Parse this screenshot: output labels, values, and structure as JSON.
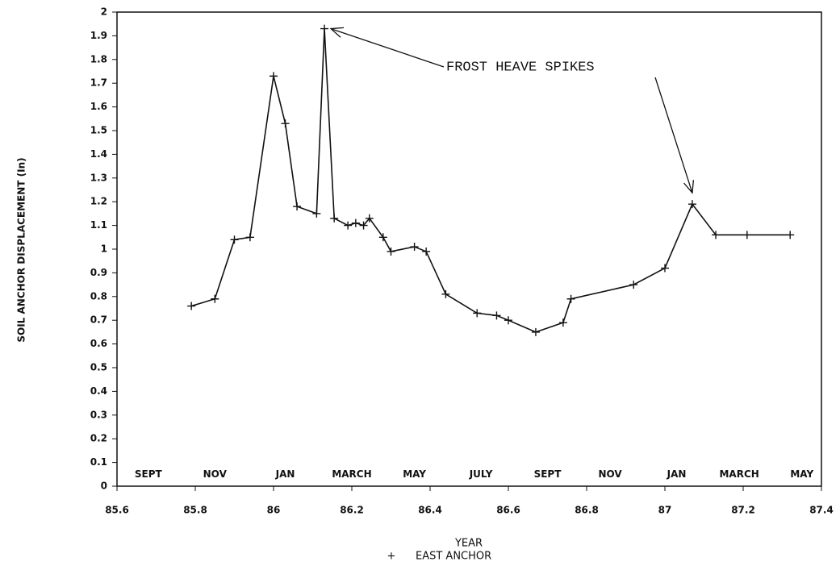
{
  "chart_data": {
    "type": "line",
    "x_label": "YEAR",
    "y_label": "SOIL ANCHOR DISPLACEMENT (In)",
    "annotation": "FROST HEAVE SPIKES",
    "xlim": [
      85.6,
      87.4
    ],
    "xticks": [
      85.6,
      85.8,
      86,
      86.2,
      86.4,
      86.6,
      86.8,
      87,
      87.2,
      87.4
    ],
    "ylim": [
      0,
      2
    ],
    "yticks": [
      0,
      0.1,
      0.2,
      0.3,
      0.4,
      0.5,
      0.6,
      0.7,
      0.8,
      0.9,
      1,
      1.1,
      1.2,
      1.3,
      1.4,
      1.5,
      1.6,
      1.7,
      1.8,
      1.9,
      2
    ],
    "month_labels": [
      {
        "text": "SEPT",
        "x": 85.68
      },
      {
        "text": "NOV",
        "x": 85.85
      },
      {
        "text": "JAN",
        "x": 86.03
      },
      {
        "text": "MARCH",
        "x": 86.2
      },
      {
        "text": "MAY",
        "x": 86.36
      },
      {
        "text": "JULY",
        "x": 86.53
      },
      {
        "text": "SEPT",
        "x": 86.7
      },
      {
        "text": "NOV",
        "x": 86.86
      },
      {
        "text": "JAN",
        "x": 87.03
      },
      {
        "text": "MARCH",
        "x": 87.19
      },
      {
        "text": "MAY",
        "x": 87.35
      }
    ],
    "series": [
      {
        "name": "EAST ANCHOR",
        "color": "#111111",
        "x": [
          85.79,
          85.85,
          85.9,
          85.94,
          86.0,
          86.03,
          86.06,
          86.11,
          86.13,
          86.155,
          86.19,
          86.21,
          86.23,
          86.245,
          86.28,
          86.3,
          86.36,
          86.39,
          86.44,
          86.52,
          86.57,
          86.6,
          86.67,
          86.74,
          86.76,
          86.92,
          87.0,
          87.07,
          87.13,
          87.21,
          87.32
        ],
        "values": [
          0.76,
          0.79,
          1.04,
          1.05,
          1.73,
          1.53,
          1.18,
          1.15,
          1.93,
          1.13,
          1.1,
          1.11,
          1.1,
          1.13,
          1.05,
          0.99,
          1.01,
          0.99,
          0.81,
          0.73,
          0.72,
          0.7,
          0.65,
          0.69,
          0.79,
          0.85,
          0.92,
          1.19,
          1.06,
          1.06,
          1.06
        ]
      }
    ]
  }
}
